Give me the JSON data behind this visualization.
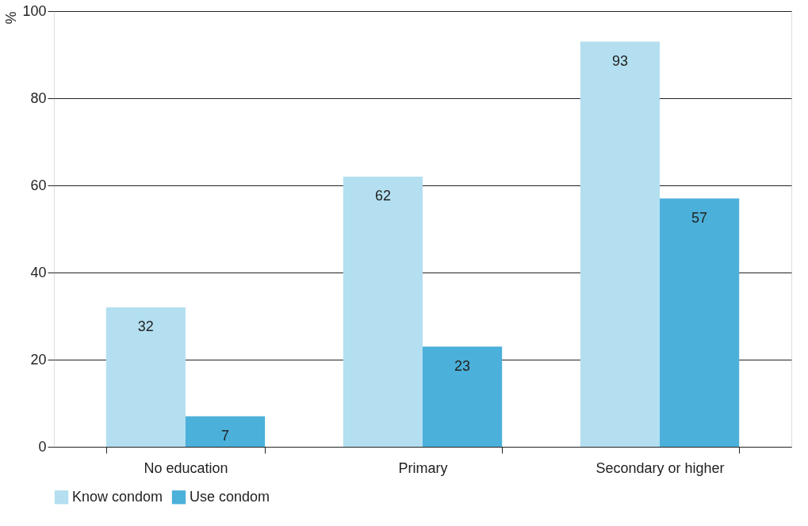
{
  "chart_data": {
    "type": "bar",
    "ylabel": "%",
    "categories": [
      "No education",
      "Primary",
      "Secondary or higher"
    ],
    "series": [
      {
        "name": "Know condom",
        "color": "#b3dff0",
        "values": [
          32,
          62,
          93
        ]
      },
      {
        "name": "Use condom",
        "color": "#4bb0da",
        "values": [
          7,
          23,
          57
        ]
      }
    ],
    "ylim": [
      0,
      100
    ],
    "yticks": [
      0,
      20,
      40,
      60,
      80,
      100
    ],
    "grid": "y",
    "legend": "bottom",
    "data_labels": true
  }
}
